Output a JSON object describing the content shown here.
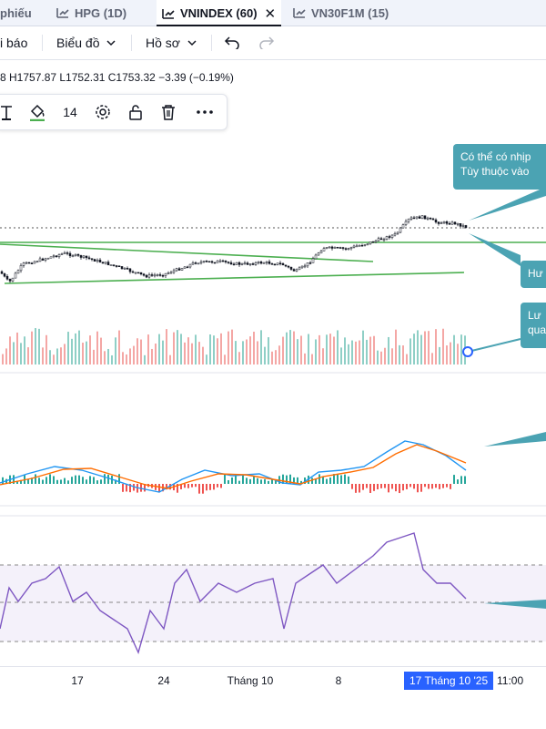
{
  "tabs": [
    {
      "label": "phiếu",
      "active": false,
      "has_close": false
    },
    {
      "label": "HPG (1D)",
      "active": false,
      "has_close": false
    },
    {
      "label": "VNINDEX (60)",
      "active": true,
      "has_close": true
    },
    {
      "label": "VN30F1M (15)",
      "active": false,
      "has_close": false
    }
  ],
  "toolbar": {
    "alert_label": "i báo",
    "chart_label": "Biểu đồ",
    "profile_label": "Hồ sơ"
  },
  "ohlc": {
    "text": "8 H1757.87 L1752.31 C1753.32 −3.39 (−0.19%)"
  },
  "drawing_toolbar": {
    "font_size": "14",
    "icons": [
      "text-icon",
      "paint-bucket-icon",
      "gear-icon",
      "unlock-icon",
      "trash-icon",
      "more-icon"
    ]
  },
  "callouts": {
    "c1_line1": "Có thể có nhịp",
    "c1_line2": "Tùy thuộc vào",
    "c2": "Hư",
    "c3_line1": "Lư",
    "c3_line2": "qua"
  },
  "time_axis": {
    "ticks": [
      "17",
      "24",
      "Tháng 10",
      "8"
    ],
    "highlight_date": "17 Tháng 10 '25",
    "highlight_time": "11:00"
  },
  "colors": {
    "up": "#26a69a",
    "down": "#ef5350",
    "trendline": "#4caf50",
    "macd": "#2196f3",
    "signal": "#ff6d00",
    "rsi": "#7e57c2",
    "callout": "#4ba3b3",
    "accent": "#2962ff"
  }
}
